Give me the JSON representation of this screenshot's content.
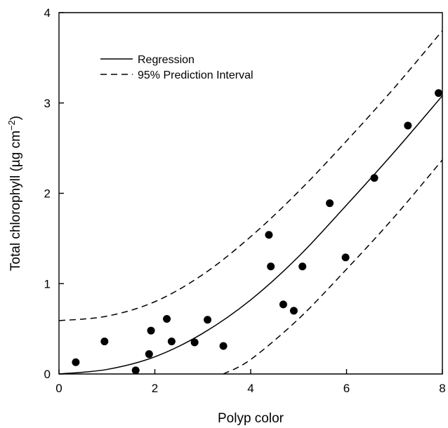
{
  "chart_data": {
    "type": "scatter",
    "xlabel": "Polyp color",
    "ylabel_main": "Total chlorophyll (µg cm",
    "ylabel_sup": "−2",
    "ylabel_close": ")",
    "xlim": [
      0,
      8
    ],
    "ylim": [
      0,
      4
    ],
    "xticks": [
      "0",
      "2",
      "4",
      "6",
      "8"
    ],
    "yticks": [
      "0",
      "1",
      "2",
      "3",
      "4"
    ],
    "grid": false,
    "legend_position": "top-left",
    "legend": [
      {
        "label": "Regression",
        "style": "solid"
      },
      {
        "label": "95% Prediction Interval",
        "style": "dashed"
      }
    ],
    "points": [
      {
        "x": 0.35,
        "y": 0.13
      },
      {
        "x": 0.95,
        "y": 0.36
      },
      {
        "x": 1.6,
        "y": 0.04
      },
      {
        "x": 1.88,
        "y": 0.22
      },
      {
        "x": 1.92,
        "y": 0.48
      },
      {
        "x": 2.25,
        "y": 0.61
      },
      {
        "x": 2.35,
        "y": 0.36
      },
      {
        "x": 2.83,
        "y": 0.35
      },
      {
        "x": 3.1,
        "y": 0.6
      },
      {
        "x": 3.43,
        "y": 0.31
      },
      {
        "x": 4.38,
        "y": 1.54
      },
      {
        "x": 4.42,
        "y": 1.19
      },
      {
        "x": 4.68,
        "y": 0.77
      },
      {
        "x": 4.9,
        "y": 0.7
      },
      {
        "x": 5.08,
        "y": 1.19
      },
      {
        "x": 5.65,
        "y": 1.89
      },
      {
        "x": 5.98,
        "y": 1.29
      },
      {
        "x": 6.58,
        "y": 2.17
      },
      {
        "x": 7.28,
        "y": 2.75
      },
      {
        "x": 7.92,
        "y": 3.11
      }
    ],
    "regression": {
      "x": [
        0,
        1,
        2,
        3,
        4,
        5,
        6,
        7,
        8
      ],
      "y": [
        0,
        0.05,
        0.19,
        0.45,
        0.82,
        1.3,
        1.87,
        2.46,
        3.08
      ]
    },
    "pi_upper": {
      "x": [
        0,
        1,
        2,
        3,
        4,
        5,
        6,
        7,
        8
      ],
      "y": [
        0.59,
        0.64,
        0.8,
        1.1,
        1.52,
        2.02,
        2.58,
        3.17,
        3.8
      ]
    },
    "pi_lower": {
      "x": [
        3.43,
        4,
        5,
        6,
        7,
        8
      ],
      "y": [
        0,
        0.16,
        0.61,
        1.16,
        1.74,
        2.37
      ]
    }
  }
}
